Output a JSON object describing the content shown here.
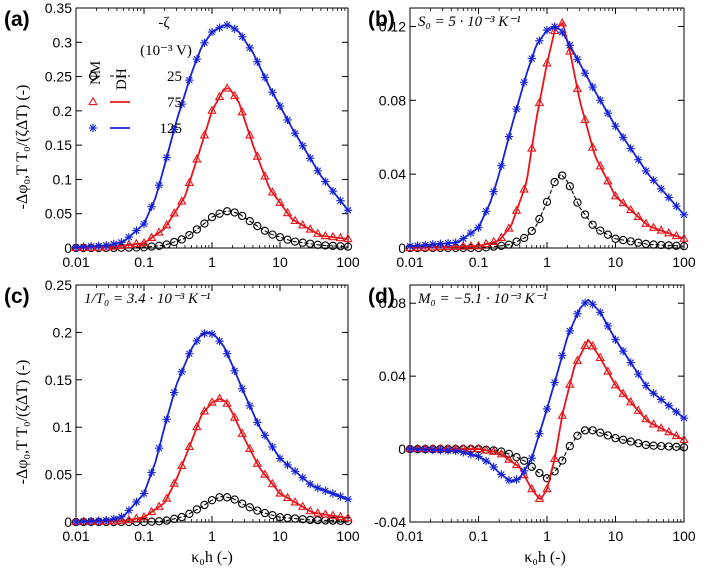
{
  "colors": {
    "NM_25": "#000000",
    "NM_75": "#e8141a",
    "NM_125": "#1521d6",
    "DH_25": "#000000",
    "DH_75": "#e8141a",
    "DH_125": "#1521d6"
  },
  "legend": {
    "col_nm": "NM",
    "col_dh": "DH",
    "zeta_header": "-ζ",
    "zeta_unit": "(10⁻³ V)",
    "rows": [
      {
        "label": "25",
        "marker": "circle",
        "color": "#000000"
      },
      {
        "label": "75",
        "marker": "triangle",
        "color": "#e8141a"
      },
      {
        "label": "125",
        "marker": "asterisk",
        "color": "#1521d6"
      }
    ]
  },
  "ylabel_top": "-Δφ₀,T T₀/(ζΔT) (-)",
  "ylabel_bottom": "-Δφ₀,T T₀/(ζΔT) (-)",
  "xlabel_left": "κ₀h (-)",
  "xlabel_right": "κ₀h (-)",
  "chart_data": [
    {
      "type": "line",
      "panel": "(a)",
      "annotation": "",
      "xscale": "log",
      "xlim": [
        0.01,
        100
      ],
      "ylim": [
        0,
        0.35
      ],
      "xticks": [
        "0.01",
        "0.1",
        "1",
        "10",
        "100"
      ],
      "yticks": [
        0,
        0.05,
        0.1,
        0.15,
        0.2,
        0.25,
        0.3,
        0.35
      ],
      "yticklabels": [
        "0",
        "0.05",
        "0.1",
        "0.15",
        "0.2",
        "0.25",
        "0.3",
        "0.35"
      ],
      "series": [
        {
          "zeta": "25",
          "x": [
            0.01,
            0.03,
            0.1,
            0.2,
            0.4,
            0.7,
            1,
            1.5,
            1.8,
            2.5,
            4,
            7,
            15,
            40,
            100
          ],
          "y": [
            0,
            0,
            0.001,
            0.004,
            0.014,
            0.032,
            0.045,
            0.053,
            0.054,
            0.05,
            0.036,
            0.021,
            0.01,
            0.004,
            0.002
          ]
        },
        {
          "zeta": "75",
          "x": [
            0.01,
            0.03,
            0.1,
            0.2,
            0.4,
            0.7,
            1,
            1.5,
            1.8,
            2.5,
            4,
            7,
            15,
            40,
            100
          ],
          "y": [
            0,
            0.001,
            0.007,
            0.028,
            0.075,
            0.15,
            0.2,
            0.232,
            0.233,
            0.212,
            0.15,
            0.087,
            0.042,
            0.018,
            0.013
          ]
        },
        {
          "zeta": "125",
          "x": [
            0.01,
            0.03,
            0.05,
            0.1,
            0.15,
            0.2,
            0.3,
            0.5,
            0.7,
            1,
            1.5,
            1.8,
            2.5,
            4,
            7,
            15,
            40,
            100
          ],
          "y": [
            0.001,
            0.004,
            0.009,
            0.035,
            0.075,
            0.12,
            0.185,
            0.255,
            0.293,
            0.315,
            0.325,
            0.325,
            0.315,
            0.285,
            0.235,
            0.175,
            0.105,
            0.055
          ]
        }
      ]
    },
    {
      "type": "line",
      "panel": "(b)",
      "annotation": "S₀ = 5 · 10⁻³ K⁻¹",
      "xscale": "log",
      "xlim": [
        0.01,
        100
      ],
      "ylim": [
        0,
        0.13
      ],
      "xticks": [
        "0.01",
        "0.1",
        "1",
        "10",
        "100"
      ],
      "yticks": [
        0,
        0.04,
        0.08,
        0.12
      ],
      "yticklabels": [
        "0",
        "0.04",
        "0.08",
        "0.12"
      ],
      "series": [
        {
          "zeta": "25",
          "x": [
            0.01,
            0.1,
            0.2,
            0.3,
            0.5,
            0.7,
            1,
            1.3,
            1.6,
            2,
            3,
            5,
            10,
            30,
            100
          ],
          "y": [
            0,
            0,
            0.001,
            0.002,
            0.006,
            0.012,
            0.025,
            0.036,
            0.04,
            0.036,
            0.022,
            0.011,
            0.005,
            0.002,
            0.001
          ]
        },
        {
          "zeta": "75",
          "x": [
            0.01,
            0.1,
            0.2,
            0.3,
            0.5,
            0.7,
            1,
            1.3,
            1.7,
            2.2,
            3,
            5,
            10,
            30,
            100
          ],
          "y": [
            0,
            0.001,
            0.004,
            0.012,
            0.035,
            0.07,
            0.1,
            0.118,
            0.122,
            0.105,
            0.08,
            0.05,
            0.028,
            0.012,
            0.005
          ]
        },
        {
          "zeta": "125",
          "x": [
            0.01,
            0.05,
            0.1,
            0.15,
            0.2,
            0.3,
            0.5,
            0.7,
            1,
            1.3,
            1.6,
            2,
            3,
            5,
            10,
            30,
            100
          ],
          "y": [
            0.001,
            0.003,
            0.011,
            0.025,
            0.04,
            0.065,
            0.094,
            0.11,
            0.118,
            0.12,
            0.118,
            0.112,
            0.1,
            0.085,
            0.066,
            0.04,
            0.018
          ]
        }
      ]
    },
    {
      "type": "line",
      "panel": "(c)",
      "annotation": "1/T₀ = 3.4 · 10⁻³ K⁻¹",
      "xscale": "log",
      "xlim": [
        0.01,
        100
      ],
      "ylim": [
        0,
        0.25
      ],
      "xticks": [
        "0.01",
        "0.1",
        "1",
        "10",
        "100"
      ],
      "yticks": [
        0,
        0.05,
        0.1,
        0.15,
        0.2,
        0.25
      ],
      "yticklabels": [
        "0",
        "0.05",
        "0.1",
        "0.15",
        "0.2",
        "0.25"
      ],
      "series": [
        {
          "zeta": "25",
          "x": [
            0.01,
            0.1,
            0.2,
            0.4,
            0.7,
            1,
            1.4,
            2,
            3,
            5,
            10,
            30,
            100
          ],
          "y": [
            0,
            0,
            0.001,
            0.006,
            0.016,
            0.023,
            0.027,
            0.025,
            0.018,
            0.011,
            0.005,
            0.002,
            0.001
          ]
        },
        {
          "zeta": "75",
          "x": [
            0.01,
            0.05,
            0.1,
            0.2,
            0.3,
            0.5,
            0.7,
            1,
            1.3,
            1.6,
            2,
            3,
            5,
            10,
            30,
            100
          ],
          "y": [
            0,
            0.001,
            0.005,
            0.02,
            0.045,
            0.085,
            0.113,
            0.126,
            0.13,
            0.127,
            0.115,
            0.088,
            0.057,
            0.03,
            0.01,
            0.004
          ]
        },
        {
          "zeta": "125",
          "x": [
            0.01,
            0.03,
            0.05,
            0.1,
            0.15,
            0.2,
            0.3,
            0.5,
            0.7,
            0.9,
            1.1,
            1.5,
            2,
            3,
            5,
            10,
            30,
            100
          ],
          "y": [
            0,
            0.002,
            0.006,
            0.03,
            0.065,
            0.1,
            0.145,
            0.183,
            0.198,
            0.2,
            0.197,
            0.185,
            0.165,
            0.135,
            0.1,
            0.067,
            0.038,
            0.024
          ]
        }
      ]
    },
    {
      "type": "line",
      "panel": "(d)",
      "annotation": "M₀ = −5.1 · 10⁻³ K⁻¹",
      "xscale": "log",
      "xlim": [
        0.01,
        100
      ],
      "ylim": [
        -0.04,
        0.09
      ],
      "xticks": [
        "0.01",
        "0.1",
        "1",
        "10",
        "100"
      ],
      "yticks": [
        -0.04,
        0,
        0.04,
        0.08
      ],
      "yticklabels": [
        "-0.04",
        "0",
        "0.04",
        "0.08"
      ],
      "series": [
        {
          "zeta": "25",
          "x": [
            0.01,
            0.1,
            0.2,
            0.3,
            0.5,
            0.7,
            1,
            1.5,
            2,
            3,
            4,
            6,
            10,
            30,
            100
          ],
          "y": [
            0,
            0,
            -0.001,
            -0.003,
            -0.007,
            -0.012,
            -0.016,
            -0.01,
            0,
            0.009,
            0.011,
            0.009,
            0.006,
            0.002,
            0.001
          ]
        },
        {
          "zeta": "75",
          "x": [
            0.01,
            0.1,
            0.2,
            0.4,
            0.6,
            0.8,
            1,
            1.3,
            1.7,
            2.5,
            4,
            6,
            10,
            30,
            100
          ],
          "y": [
            0,
            0,
            -0.002,
            -0.01,
            -0.022,
            -0.028,
            -0.022,
            -0.005,
            0.02,
            0.045,
            0.06,
            0.05,
            0.035,
            0.015,
            0.005
          ]
        },
        {
          "zeta": "125",
          "x": [
            0.01,
            0.05,
            0.1,
            0.15,
            0.2,
            0.3,
            0.4,
            0.6,
            1,
            1.5,
            2,
            3,
            4,
            6,
            10,
            30,
            100
          ],
          "y": [
            0,
            -0.001,
            -0.004,
            -0.008,
            -0.013,
            -0.018,
            -0.016,
            -0.005,
            0.022,
            0.045,
            0.062,
            0.077,
            0.082,
            0.075,
            0.06,
            0.033,
            0.017
          ]
        }
      ]
    }
  ]
}
